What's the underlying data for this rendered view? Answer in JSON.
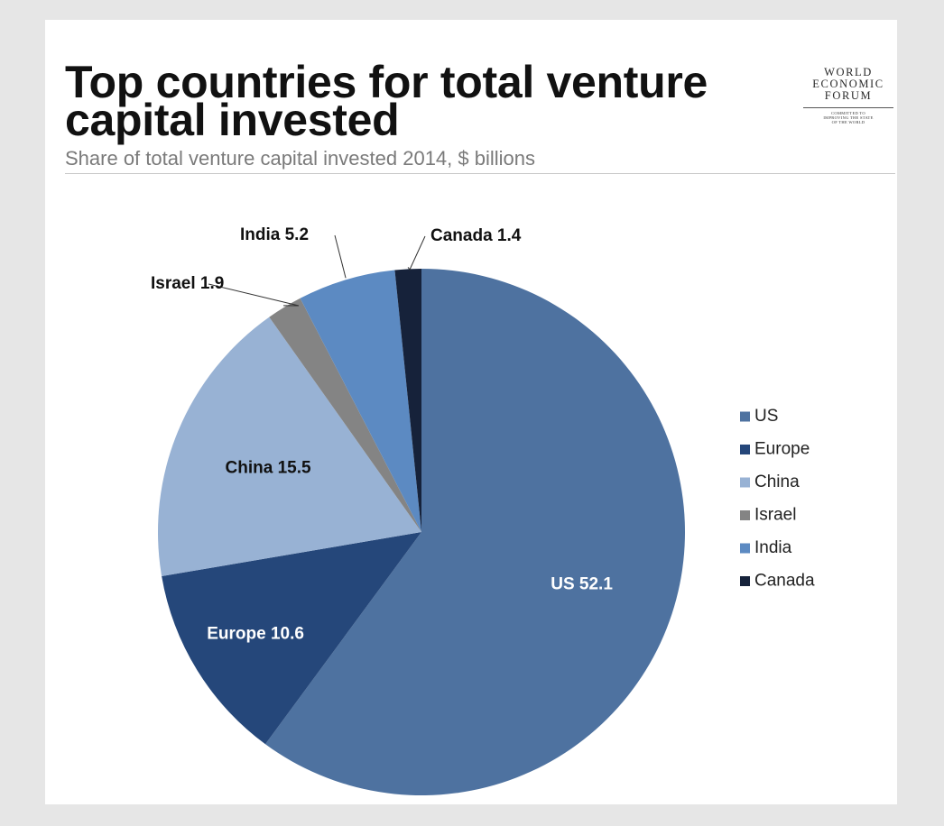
{
  "chart_data": {
    "type": "pie",
    "title": "Top countries for total venture capital invested",
    "subtitle": "Share of total venture capital invested 2014, $ billions",
    "categories": [
      "US",
      "Europe",
      "China",
      "Israel",
      "India",
      "Canada"
    ],
    "values": [
      52.1,
      10.6,
      15.5,
      1.9,
      5.2,
      1.4
    ],
    "series_colors": [
      "#4e72a0",
      "#25477a",
      "#98b2d4",
      "#848484",
      "#5c8ac2",
      "#16223a"
    ],
    "data_labels": [
      {
        "name": "US",
        "value": "52.1",
        "text_color": "#ffffff"
      },
      {
        "name": "Europe",
        "value": "10.6",
        "text_color": "#ffffff"
      },
      {
        "name": "China",
        "value": "15.5",
        "text_color": "#111111"
      },
      {
        "name": "Israel",
        "value": "1.9",
        "text_color": "#111111"
      },
      {
        "name": "India",
        "value": "5.2",
        "text_color": "#111111"
      },
      {
        "name": "Canada",
        "value": "1.4",
        "text_color": "#111111"
      }
    ],
    "legend": {
      "position": "right",
      "entries": [
        "US",
        "Europe",
        "China",
        "Israel",
        "India",
        "Canada"
      ]
    },
    "start_angle_deg": 0,
    "direction": "clockwise"
  },
  "logo": {
    "wordmark_lines": [
      "WORLD",
      "ECONOMIC",
      "FORUM"
    ],
    "tagline_lines": [
      "COMMITTED TO",
      "IMPROVING THE STATE",
      "OF THE WORLD"
    ]
  }
}
